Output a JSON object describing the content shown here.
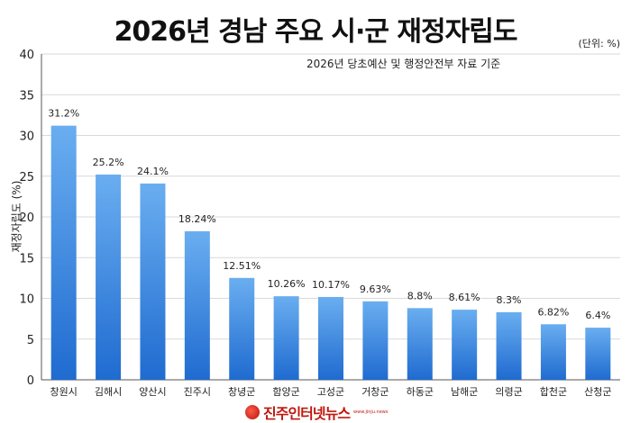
{
  "header": {
    "title": "2026년 경남 주요 시·군 재정자립도",
    "unit": "(단위: %)",
    "subtitle": "2026년 당초예산 및 행정안전부 자료 기준"
  },
  "footer": {
    "logo_text": "진주인터넷뉴스",
    "logo_url": "www.jinju.news"
  },
  "colors": {
    "bar_top": "#6aaef0",
    "bar_bottom": "#1f6bd0",
    "grid": "#d9d9d9",
    "axis": "#555555"
  },
  "chart_data": {
    "type": "bar",
    "title": "2026년 경남 주요 시·군 재정자립도",
    "subtitle": "2026년 당초예산 및 행정안전부 자료 기준",
    "ylabel": "재정자립도 (%)",
    "xlabel": "",
    "ylim": [
      0,
      40
    ],
    "yticks": [
      0,
      5,
      10,
      15,
      20,
      25,
      30,
      35,
      40
    ],
    "grid": true,
    "categories": [
      "창원시",
      "김해시",
      "양산시",
      "진주시",
      "창녕군",
      "함양군",
      "고성군",
      "거창군",
      "하동군",
      "남해군",
      "의령군",
      "합천군",
      "산청군"
    ],
    "values": [
      31.2,
      25.2,
      24.1,
      18.24,
      12.51,
      10.26,
      10.17,
      9.63,
      8.8,
      8.61,
      8.3,
      6.82,
      6.4
    ],
    "data_labels": [
      "31.2%",
      "25.2%",
      "24.1%",
      "18.24%",
      "12.51%",
      "10.26%",
      "10.17%",
      "9.63%",
      "8.8%",
      "8.61%",
      "8.3%",
      "6.82%",
      "6.4%"
    ]
  }
}
